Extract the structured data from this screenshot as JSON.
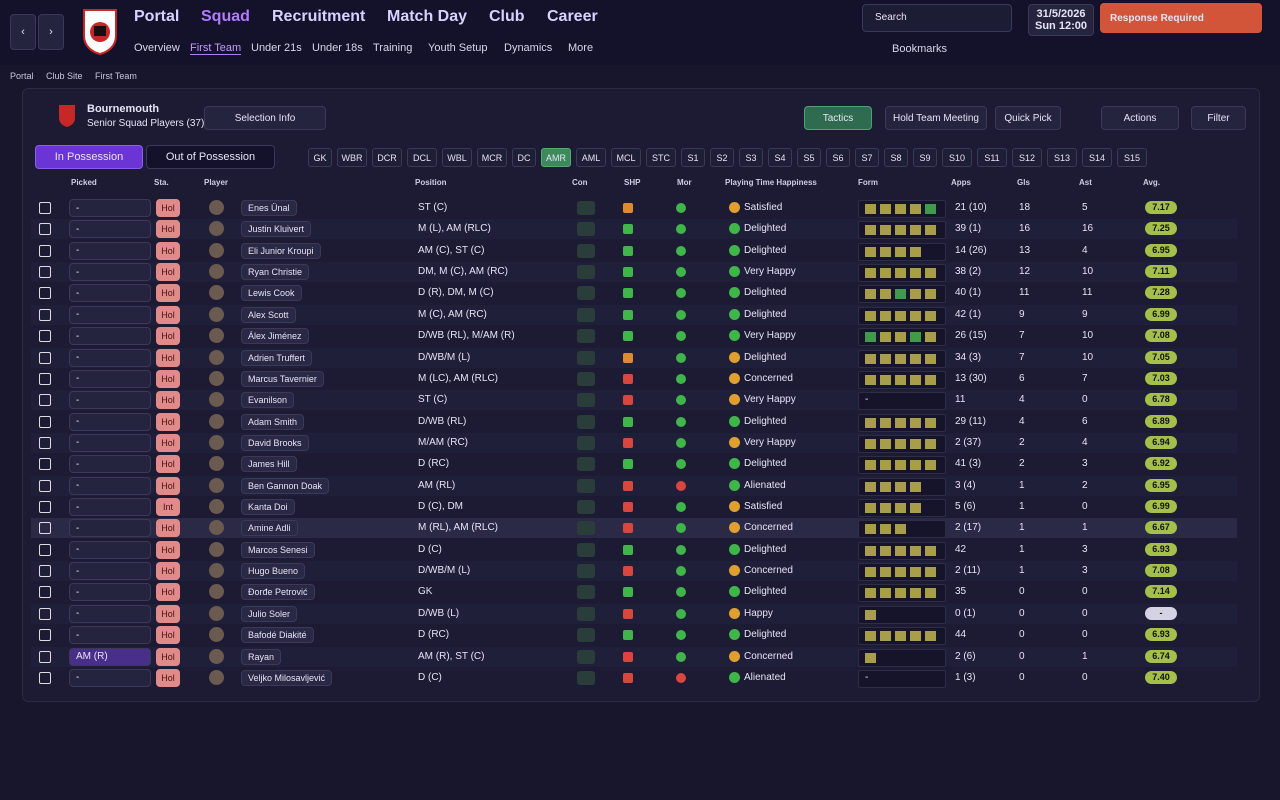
{
  "nav": {
    "menu": [
      "Portal",
      "Squad",
      "Recruitment",
      "Match Day",
      "Club",
      "Career"
    ],
    "submenu": [
      "Overview",
      "First Team",
      "Under 21s",
      "Under 18s",
      "Training",
      "Youth Setup",
      "Dynamics",
      "More"
    ],
    "search": "Search",
    "date": "31/5/2026",
    "day": "Sun",
    "time": "12:00",
    "alert": "Response Required",
    "bookmarks": "Bookmarks"
  },
  "breadcrumb": [
    "Portal",
    "Club Site",
    "First Team"
  ],
  "panel": {
    "club": "Bournemouth",
    "subtitle": "Senior Squad Players (37)",
    "selection_info": "Selection Info",
    "buttons": [
      "Tactics",
      "Hold Team Meeting",
      "Quick Pick",
      "Actions",
      "Filter"
    ],
    "tabs": [
      "In Possession",
      "Out of Possession"
    ],
    "positions": [
      "GK",
      "WBR",
      "DCR",
      "DCL",
      "WBL",
      "MCR",
      "DC",
      "AMR",
      "AML",
      "MCL",
      "STC",
      "S1",
      "S2",
      "S3",
      "S4",
      "S5",
      "S6",
      "S7",
      "S8",
      "S9",
      "S10",
      "S11",
      "S12",
      "S13",
      "S14",
      "S15"
    ]
  },
  "table": {
    "columns": [
      "Picked",
      "Sta.",
      "Player",
      "Position",
      "Con",
      "SHP",
      "Mor",
      "Playing Time Happiness",
      "Form",
      "Apps",
      "Gls",
      "Ast",
      "Avg."
    ],
    "rows": [
      {
        "picked": "-",
        "sta": "Hol",
        "name": "Enes Ünal",
        "position": "ST (C)",
        "shp": "#e08a2e",
        "mor": "#3fb54a",
        "pth": "Satisfied",
        "form": [
          "#a89d48",
          "#a89d48",
          "#a89d48",
          "#a89d48",
          "#3f9a4e"
        ],
        "apps": "21 (10)",
        "gls": 18,
        "ast": 5,
        "avg": "7.17"
      },
      {
        "picked": "-",
        "sta": "Hol",
        "name": "Justin Kluivert",
        "position": "M (L), AM (RLC)",
        "shp": "#3fb54a",
        "mor": "#3fb54a",
        "pth": "Delighted",
        "form": [
          "#a89d48",
          "#a89d48",
          "#a89d48",
          "#a89d48",
          "#a89d48"
        ],
        "apps": "39 (1)",
        "gls": 16,
        "ast": 16,
        "avg": "7.25"
      },
      {
        "picked": "-",
        "sta": "Hol",
        "name": "Eli Junior Kroupi",
        "position": "AM (C), ST (C)",
        "shp": "#3fb54a",
        "mor": "#3fb54a",
        "pth": "Delighted",
        "form": [
          "#a89d48",
          "#a89d48",
          "#a89d48",
          "#a89d48"
        ],
        "apps": "14 (26)",
        "gls": 13,
        "ast": 4,
        "avg": "6.95"
      },
      {
        "picked": "-",
        "sta": "Hol",
        "name": "Ryan Christie",
        "position": "DM, M (C), AM (RC)",
        "shp": "#3fb54a",
        "mor": "#3fb54a",
        "pth": "Very Happy",
        "form": [
          "#a89d48",
          "#a89d48",
          "#a89d48",
          "#a89d48",
          "#a89d48"
        ],
        "apps": "38 (2)",
        "gls": 12,
        "ast": 10,
        "avg": "7.11"
      },
      {
        "picked": "-",
        "sta": "Hol",
        "name": "Lewis Cook",
        "position": "D (R), DM, M (C)",
        "shp": "#3fb54a",
        "mor": "#3fb54a",
        "pth": "Delighted",
        "form": [
          "#a89d48",
          "#a89d48",
          "#3f9a4e",
          "#a89d48",
          "#a89d48"
        ],
        "apps": "40 (1)",
        "gls": 11,
        "ast": 11,
        "avg": "7.28"
      },
      {
        "picked": "-",
        "sta": "Hol",
        "name": "Alex Scott",
        "position": "M (C), AM (RC)",
        "shp": "#3fb54a",
        "mor": "#3fb54a",
        "pth": "Delighted",
        "form": [
          "#a89d48",
          "#a89d48",
          "#a89d48",
          "#a89d48",
          "#a89d48"
        ],
        "apps": "42 (1)",
        "gls": 9,
        "ast": 9,
        "avg": "6.99"
      },
      {
        "picked": "-",
        "sta": "Hol",
        "name": "Álex Jiménez",
        "position": "D/WB (RL), M/AM (R)",
        "shp": "#3fb54a",
        "mor": "#3fb54a",
        "pth": "Very Happy",
        "form": [
          "#3f9a4e",
          "#a89d48",
          "#a89d48",
          "#3f9a4e",
          "#a89d48"
        ],
        "apps": "26 (15)",
        "gls": 7,
        "ast": 10,
        "avg": "7.08"
      },
      {
        "picked": "-",
        "sta": "Hol",
        "name": "Adrien Truffert",
        "position": "D/WB/M (L)",
        "shp": "#e08a2e",
        "mor": "#3fb54a",
        "pth": "Delighted",
        "form": [
          "#a89d48",
          "#a89d48",
          "#a89d48",
          "#a89d48",
          "#a89d48"
        ],
        "apps": "34 (3)",
        "gls": 7,
        "ast": 10,
        "avg": "7.05"
      },
      {
        "picked": "-",
        "sta": "Hol",
        "name": "Marcus Tavernier",
        "position": "M (LC), AM (RLC)",
        "shp": "#d9463e",
        "mor": "#3fb54a",
        "pth": "Concerned",
        "form": [
          "#a89d48",
          "#a89d48",
          "#a89d48",
          "#a89d48",
          "#a89d48"
        ],
        "apps": "13 (30)",
        "gls": 6,
        "ast": 7,
        "avg": "7.03"
      },
      {
        "picked": "-",
        "sta": "Hol",
        "name": "Evanilson",
        "position": "ST (C)",
        "shp": "#d9463e",
        "mor": "#3fb54a",
        "pth": "Very Happy",
        "form": "-",
        "apps": "11",
        "gls": 4,
        "ast": 0,
        "avg": "6.78"
      },
      {
        "picked": "-",
        "sta": "Hol",
        "name": "Adam Smith",
        "position": "D/WB (RL)",
        "shp": "#3fb54a",
        "mor": "#3fb54a",
        "pth": "Delighted",
        "form": [
          "#a89d48",
          "#a89d48",
          "#a89d48",
          "#a89d48",
          "#a89d48"
        ],
        "apps": "29 (11)",
        "gls": 4,
        "ast": 6,
        "avg": "6.89"
      },
      {
        "picked": "-",
        "sta": "Hol",
        "name": "David Brooks",
        "position": "M/AM (RC)",
        "shp": "#d9463e",
        "mor": "#3fb54a",
        "pth": "Very Happy",
        "form": [
          "#a89d48",
          "#a89d48",
          "#a89d48",
          "#a89d48",
          "#a89d48"
        ],
        "apps": "2 (37)",
        "gls": 2,
        "ast": 4,
        "avg": "6.94"
      },
      {
        "picked": "-",
        "sta": "Hol",
        "name": "James Hill",
        "position": "D (RC)",
        "shp": "#3fb54a",
        "mor": "#3fb54a",
        "pth": "Delighted",
        "form": [
          "#a89d48",
          "#a89d48",
          "#a89d48",
          "#a89d48",
          "#a89d48"
        ],
        "apps": "41 (3)",
        "gls": 2,
        "ast": 3,
        "avg": "6.92"
      },
      {
        "picked": "-",
        "sta": "Hol",
        "name": "Ben Gannon Doak",
        "position": "AM (RL)",
        "shp": "#d9463e",
        "mor": "#d9463e",
        "pth": "Alienated",
        "form": [
          "#a89d48",
          "#a89d48",
          "#a89d48",
          "#a89d48"
        ],
        "apps": "3 (4)",
        "gls": 1,
        "ast": 2,
        "avg": "6.95"
      },
      {
        "picked": "-",
        "sta": "Int",
        "name": "Kanta Doi",
        "position": "D (C), DM",
        "shp": "#d9463e",
        "mor": "#3fb54a",
        "pth": "Satisfied",
        "form": [
          "#a89d48",
          "#a89d48",
          "#a89d48",
          "#a89d48"
        ],
        "apps": "5 (6)",
        "gls": 1,
        "ast": 0,
        "avg": "6.99"
      },
      {
        "picked": "-",
        "sta": "Hol",
        "name": "Amine Adli",
        "position": "M (RL), AM (RLC)",
        "shp": "#d9463e",
        "mor": "#3fb54a",
        "pth": "Concerned",
        "form": [
          "#a89d48",
          "#a89d48",
          "#a89d48"
        ],
        "apps": "2 (17)",
        "gls": 1,
        "ast": 1,
        "avg": "6.67"
      },
      {
        "picked": "-",
        "sta": "Hol",
        "name": "Marcos Senesi",
        "position": "D (C)",
        "shp": "#3fb54a",
        "mor": "#3fb54a",
        "pth": "Delighted",
        "form": [
          "#a89d48",
          "#a89d48",
          "#a89d48",
          "#a89d48",
          "#a89d48"
        ],
        "apps": "42",
        "gls": 1,
        "ast": 3,
        "avg": "6.93"
      },
      {
        "picked": "-",
        "sta": "Hol",
        "name": "Hugo Bueno",
        "position": "D/WB/M (L)",
        "shp": "#d9463e",
        "mor": "#3fb54a",
        "pth": "Concerned",
        "form": [
          "#a89d48",
          "#a89d48",
          "#a89d48",
          "#a89d48",
          "#a89d48"
        ],
        "apps": "2 (11)",
        "gls": 1,
        "ast": 3,
        "avg": "7.08"
      },
      {
        "picked": "-",
        "sta": "Hol",
        "name": "Đorđe Petrović",
        "position": "GK",
        "shp": "#3fb54a",
        "mor": "#3fb54a",
        "pth": "Delighted",
        "form": [
          "#a89d48",
          "#a89d48",
          "#a89d48",
          "#a89d48",
          "#a89d48"
        ],
        "apps": "35",
        "gls": 0,
        "ast": 0,
        "avg": "7.14"
      },
      {
        "picked": "-",
        "sta": "Hol",
        "name": "Julio Soler",
        "position": "D/WB (L)",
        "shp": "#d9463e",
        "mor": "#3fb54a",
        "pth": "Happy",
        "form": [
          "#a89d48"
        ],
        "apps": "0 (1)",
        "gls": 0,
        "ast": 0,
        "avg": "-"
      },
      {
        "picked": "-",
        "sta": "Hol",
        "name": "Bafodé Diakité",
        "position": "D (RC)",
        "shp": "#3fb54a",
        "mor": "#3fb54a",
        "pth": "Delighted",
        "form": [
          "#a89d48",
          "#a89d48",
          "#a89d48",
          "#a89d48",
          "#a89d48"
        ],
        "apps": "44",
        "gls": 0,
        "ast": 0,
        "avg": "6.93"
      },
      {
        "picked": "AM (R)",
        "sta": "Hol",
        "name": "Rayan",
        "position": "AM (R), ST (C)",
        "shp": "#d9463e",
        "mor": "#3fb54a",
        "pth": "Concerned",
        "form": [
          "#a89d48"
        ],
        "apps": "2 (6)",
        "gls": 0,
        "ast": 1,
        "avg": "6.74"
      },
      {
        "picked": "-",
        "sta": "Hol",
        "name": "Veljko Milosavljević",
        "position": "D (C)",
        "shp": "#d9463e",
        "mor": "#d9463e",
        "pth": "Alienated",
        "form": "-",
        "apps": "1 (3)",
        "gls": 0,
        "ast": 0,
        "avg": "7.40"
      }
    ]
  }
}
